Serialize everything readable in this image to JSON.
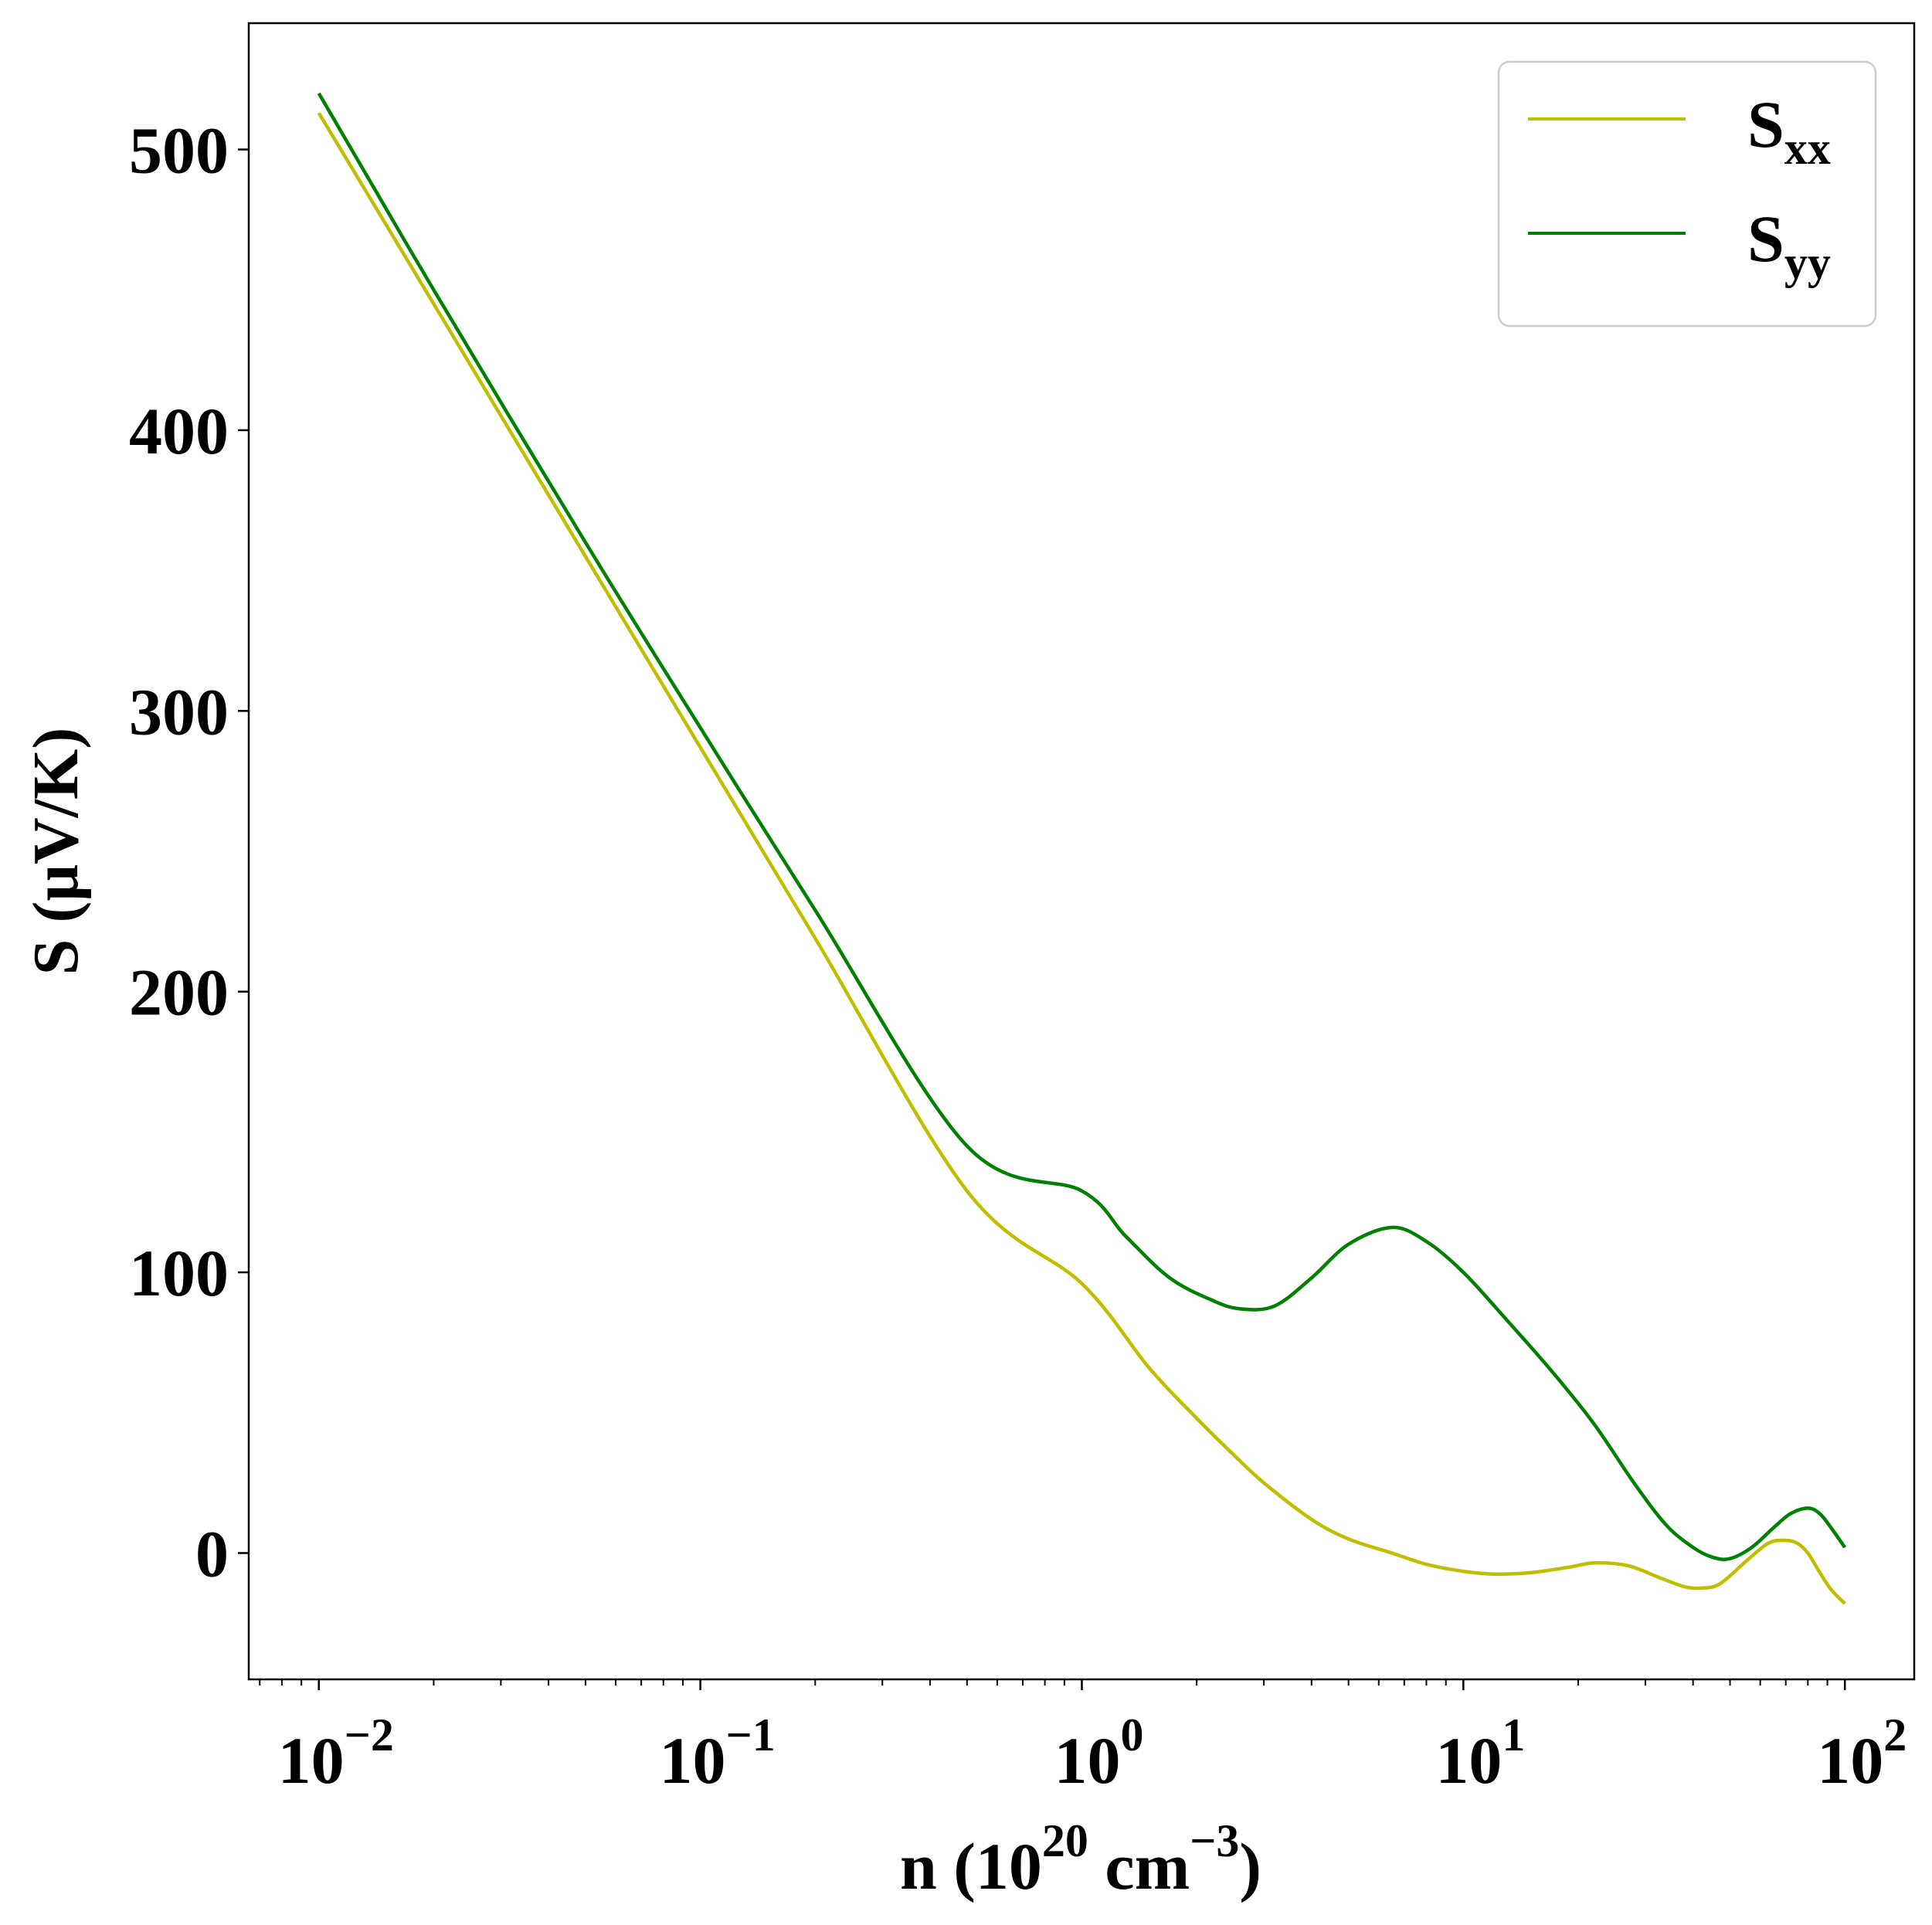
{
  "chart_data": {
    "type": "line",
    "title": "",
    "xscale": "log",
    "xlim": [
      0.00655,
      152
    ],
    "ylim": [
      -45,
      545
    ],
    "xlabel": {
      "base": "n (10",
      "sup1": "20",
      "mid": " cm",
      "sup2": "−3",
      "end": ")"
    },
    "ylabel": "S (μV/K)",
    "xticks": [
      {
        "value": 0.01,
        "base": "10",
        "exp": "−2"
      },
      {
        "value": 0.1,
        "base": "10",
        "exp": "−1"
      },
      {
        "value": 1,
        "base": "10",
        "exp": "0"
      },
      {
        "value": 10,
        "base": "10",
        "exp": "1"
      },
      {
        "value": 100,
        "base": "10",
        "exp": "2"
      }
    ],
    "yticks": [
      {
        "value": 0,
        "label": "0"
      },
      {
        "value": 100,
        "label": "100"
      },
      {
        "value": 200,
        "label": "200"
      },
      {
        "value": 300,
        "label": "300"
      },
      {
        "value": 400,
        "label": "400"
      },
      {
        "value": 500,
        "label": "500"
      }
    ],
    "grid": false,
    "legend_position": "top-right",
    "series": [
      {
        "name": "S",
        "sub": "xx",
        "color": "#bfbf00",
        "x": [
          0.01,
          0.02,
          0.05,
          0.1,
          0.2,
          0.5,
          1.0,
          1.5,
          2.0,
          2.5,
          3.0,
          4.0,
          5.0,
          6.5,
          8.0,
          10.0,
          12.0,
          15.0,
          19.0,
          22.0,
          27.0,
          33.0,
          38.0,
          42.0,
          47.0,
          55.0,
          63.0,
          70.0,
          75.0,
          80.0,
          86.0,
          92.0,
          100.0
        ],
        "y": [
          513,
          445,
          355,
          287,
          219,
          129,
          96,
          66,
          48,
          35,
          25,
          12,
          5,
          0,
          -4,
          -6.5,
          -7.5,
          -7,
          -5,
          -3.5,
          -4.5,
          -9,
          -12,
          -12.5,
          -11,
          -3,
          3.5,
          4.5,
          3.5,
          0,
          -7,
          -13,
          -18
        ]
      },
      {
        "name": "S",
        "sub": "yy",
        "color": "#008000",
        "x": [
          0.01,
          0.02,
          0.05,
          0.1,
          0.2,
          0.5,
          1.0,
          1.3,
          1.7,
          2.2,
          2.6,
          3.2,
          4.0,
          5.0,
          6.5,
          8.0,
          10.0,
          13.0,
          17.0,
          22.0,
          28.0,
          34.0,
          40.0,
          45.0,
          50.0,
          57.0,
          65.0,
          72.0,
          80.0,
          86.0,
          92.0,
          100.0
        ],
        "y": [
          520,
          450,
          360,
          294,
          229,
          145,
          129,
          113,
          98,
          90,
          87,
          88,
          98,
          110,
          116,
          111,
          100,
          83,
          65,
          46,
          25,
          10,
          2,
          -1.5,
          -2,
          2,
          9,
          14,
          16,
          14,
          9,
          2
        ]
      }
    ]
  }
}
